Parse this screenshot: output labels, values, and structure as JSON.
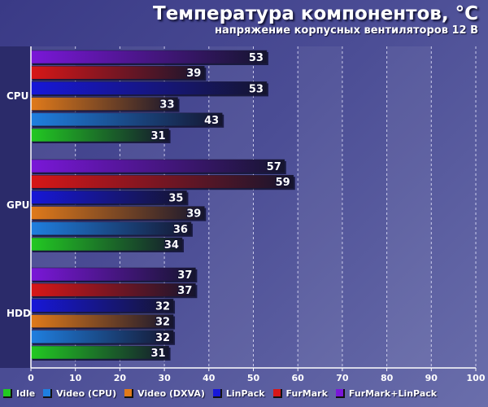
{
  "chart_data": {
    "type": "bar",
    "orientation": "horizontal",
    "title": "Температура компонентов, °C",
    "subtitle": "напряжение корпусных вентиляторов 12 В",
    "categories": [
      "CPU",
      "GPU",
      "HDD"
    ],
    "series": [
      {
        "name": "Idle",
        "color": "#22c922",
        "values": [
          31,
          34,
          31
        ]
      },
      {
        "name": "Video (CPU)",
        "color": "#1f7fe0",
        "values": [
          43,
          36,
          32
        ]
      },
      {
        "name": "Video (DXVA)",
        "color": "#e07a1a",
        "values": [
          33,
          39,
          32
        ]
      },
      {
        "name": "LinPack",
        "color": "#1717d8",
        "values": [
          53,
          35,
          32
        ]
      },
      {
        "name": "FurMark",
        "color": "#d81717",
        "values": [
          39,
          59,
          37
        ]
      },
      {
        "name": "FurMark+LinPack",
        "color": "#7a17d8",
        "values": [
          53,
          57,
          37
        ]
      }
    ],
    "xlim": [
      0,
      100
    ],
    "xticks": [
      "0",
      "10",
      "20",
      "30",
      "40",
      "50",
      "60",
      "70",
      "80",
      "90",
      "100"
    ],
    "grid": true,
    "legend_position": "bottom"
  }
}
